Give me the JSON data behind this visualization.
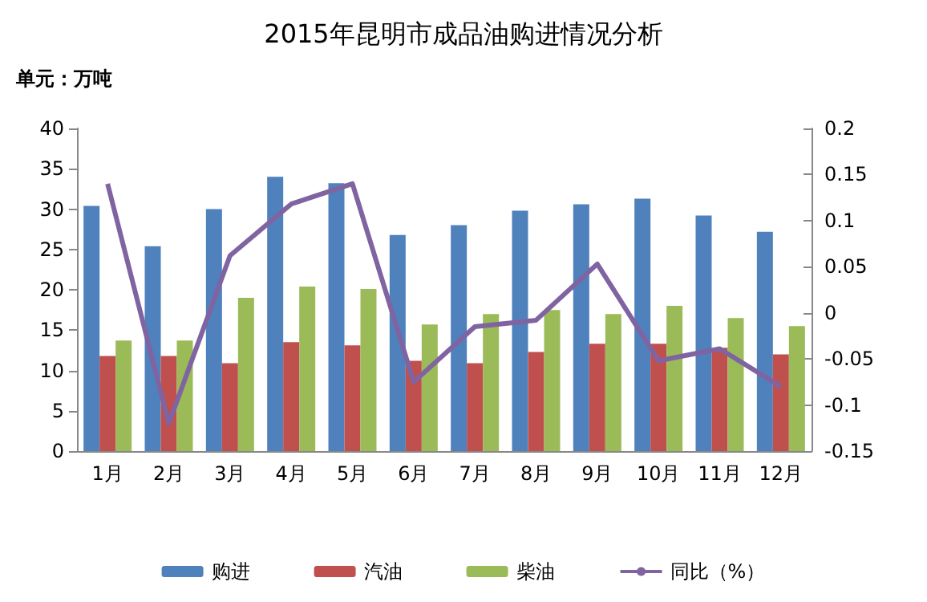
{
  "chart_data": {
    "type": "bar",
    "title": "2015年昆明市成品油购进情况分析",
    "annotations": [
      "单元：万吨"
    ],
    "categories": [
      "1月",
      "2月",
      "3月",
      "4月",
      "5月",
      "6月",
      "7月",
      "8月",
      "9月",
      "10月",
      "11月",
      "12月"
    ],
    "series": [
      {
        "name": "购进",
        "color": "#4f81bd",
        "values": [
          30.4,
          25.4,
          30,
          34,
          33.2,
          26.8,
          28,
          29.8,
          30.6,
          31.3,
          29.2,
          27.2
        ]
      },
      {
        "name": "汽油",
        "color": "#c0504d",
        "values": [
          11.8,
          11.8,
          10.9,
          13.5,
          13.1,
          11.2,
          10.9,
          12.3,
          13.3,
          13.3,
          12.8,
          12
        ]
      },
      {
        "name": "柴油",
        "color": "#9bbb59",
        "values": [
          13.7,
          13.7,
          19,
          20.4,
          20.1,
          15.7,
          17,
          17.5,
          17,
          18,
          16.5,
          15.5
        ]
      },
      {
        "name": "同比（%）",
        "type": "line",
        "axis": "y2",
        "color": "#8064a2",
        "values": [
          0.14,
          -0.12,
          0.062,
          0.118,
          0.14,
          -0.075,
          -0.015,
          -0.008,
          0.053,
          -0.052,
          -0.039,
          -0.08
        ]
      }
    ],
    "ylim": [
      0,
      40
    ],
    "yticks": [
      0,
      5,
      10,
      15,
      20,
      25,
      30,
      35,
      40
    ],
    "y2lim": [
      -0.15,
      0.2
    ],
    "y2ticks": [
      -0.15,
      -0.1,
      -0.05,
      0,
      0.05,
      0.1,
      0.15,
      0.2
    ],
    "grid": false,
    "legend": "bottom",
    "marker": "none",
    "line_style": "solid"
  }
}
